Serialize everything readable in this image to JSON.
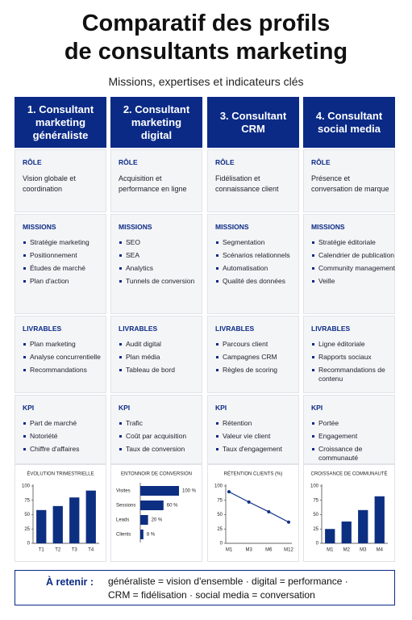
{
  "header": {
    "title_lines": [
      "Comparatif des profils",
      "de consultants marketing"
    ],
    "subtitle": "Missions, expertises et indicateurs clés"
  },
  "columns": [
    {
      "title_lines": [
        "1. Consultant",
        "marketing",
        "généraliste"
      ],
      "role_label": "RÔLE",
      "role": "Vision globale et coordination",
      "missions_label": "MISSIONS",
      "missions": [
        "Stratégie marketing",
        "Positionnement",
        "Études de marché",
        "Plan d'action"
      ],
      "deliverables_label": "LIVRABLES",
      "deliverables": [
        "Plan marketing",
        "Analyse concurrentielle",
        "Recommandations"
      ],
      "kpi_label": "KPI",
      "kpis": [
        "Part de marché",
        "Notoriété",
        "Chiffre d'affaires"
      ],
      "chart": {
        "type": "bar",
        "title": "ÉVOLUTION TRIMESTRIELLE",
        "categories": [
          "T1",
          "T2",
          "T3",
          "T4"
        ],
        "values": [
          58,
          65,
          80,
          92
        ],
        "ylim": [
          0,
          100
        ],
        "yticks": [
          0,
          25,
          50,
          75,
          100
        ],
        "color": "#0d2f82"
      }
    },
    {
      "title_lines": [
        "2. Consultant",
        "marketing",
        "digital"
      ],
      "role_label": "RÔLE",
      "role": "Acquisition et performance en ligne",
      "missions_label": "MISSIONS",
      "missions": [
        "SEO",
        "SEA",
        "Analytics",
        "Tunnels de conversion"
      ],
      "deliverables_label": "LIVRABLES",
      "deliverables": [
        "Audit digital",
        "Plan média",
        "Tableau de bord"
      ],
      "kpi_label": "KPI",
      "kpis": [
        "Trafic",
        "Coût par acquisition",
        "Taux de conversion"
      ],
      "chart": {
        "type": "funnel",
        "title": "ENTONNOIR DE CONVERSION",
        "categories": [
          "Visites",
          "Sessions",
          "Leads",
          "Clients"
        ],
        "values": [
          100,
          60,
          20,
          8
        ],
        "value_labels": [
          "100 %",
          "60 %",
          "20 %",
          "8 %"
        ],
        "color": "#0d2f82"
      }
    },
    {
      "title_lines": [
        "3. Consultant",
        "CRM"
      ],
      "role_label": "RÔLE",
      "role": "Fidélisation et connaissance client",
      "missions_label": "MISSIONS",
      "missions": [
        "Segmentation",
        "Scénarios relationnels",
        "Automatisation",
        "Qualité des données"
      ],
      "deliverables_label": "LIVRABLES",
      "deliverables": [
        "Parcours client",
        "Campagnes CRM",
        "Règles de scoring"
      ],
      "kpi_label": "KPI",
      "kpis": [
        "Rétention",
        "Valeur vie client",
        "Taux d'engagement"
      ],
      "chart": {
        "type": "line",
        "title": "RÉTENTION CLIENTS (%)",
        "categories": [
          "M1",
          "M3",
          "M6",
          "M12"
        ],
        "values": [
          90,
          72,
          55,
          37
        ],
        "ylim": [
          0,
          100
        ],
        "yticks": [
          0,
          25,
          50,
          75,
          100
        ],
        "color": "#0d2f82"
      }
    },
    {
      "title_lines": [
        "4. Consultant",
        "social media"
      ],
      "role_label": "RÔLE",
      "role": "Présence et conversation de marque",
      "missions_label": "MISSIONS",
      "missions": [
        "Stratégie éditoriale",
        "Calendrier de publication",
        "Community management",
        "Veille"
      ],
      "deliverables_label": "LIVRABLES",
      "deliverables": [
        "Ligne éditoriale",
        "Rapports sociaux",
        "Recommandations de contenu"
      ],
      "kpi_label": "KPI",
      "kpis": [
        "Portée",
        "Engagement",
        "Croissance de communauté"
      ],
      "chart": {
        "type": "bar",
        "title": "CROISSANCE DE COMMUNAUTÉ",
        "categories": [
          "M1",
          "M2",
          "M3",
          "M4"
        ],
        "values": [
          25,
          38,
          58,
          82
        ],
        "ylim": [
          0,
          100
        ],
        "yticks": [
          0,
          25,
          50,
          75,
          100
        ],
        "color": "#0d2f82"
      }
    }
  ],
  "footer": {
    "label": "À retenir :",
    "lines": [
      "généraliste = vision d'ensemble · digital = performance ·",
      "CRM = fidélisation · social media = conversation"
    ]
  }
}
